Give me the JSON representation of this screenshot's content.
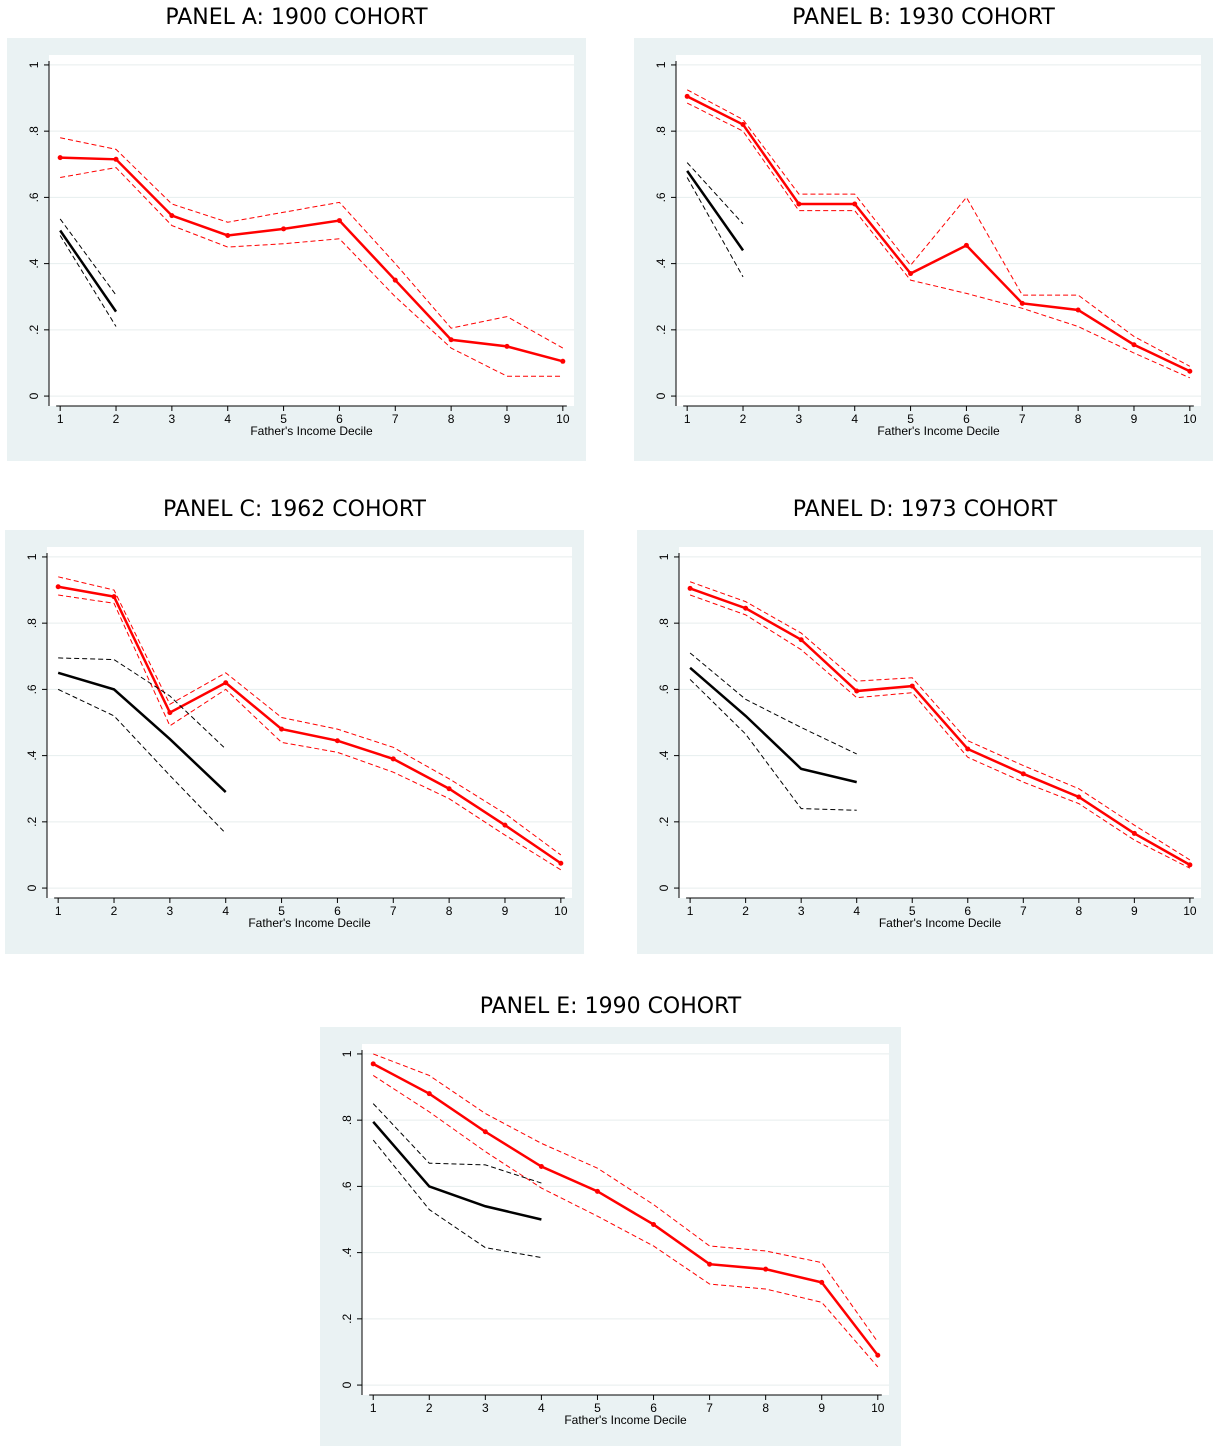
{
  "chart_data": [
    {
      "type": "line",
      "title": "PANEL A: 1900 COHORT",
      "xlabel": "Father's Income Decile",
      "x": [
        1,
        2,
        3,
        4,
        5,
        6,
        7,
        8,
        9,
        10
      ],
      "xlim": [
        0.8,
        10.2
      ],
      "xticks": [
        1,
        2,
        3,
        4,
        5,
        6,
        7,
        8,
        9,
        10
      ],
      "ylim": [
        -0.03,
        1.03
      ],
      "yticks": [
        0,
        {
          "value": 0.2,
          "label": ".2"
        },
        {
          "value": 0.4,
          "label": ".4"
        },
        {
          "value": 0.6,
          "label": ".6"
        },
        {
          "value": 0.8,
          "label": ".8"
        },
        1
      ],
      "grid": true,
      "series": [
        {
          "color": "#ff0000",
          "style": "solid",
          "markers": true,
          "values": [
            0.72,
            0.715,
            0.545,
            0.485,
            0.505,
            0.53,
            0.35,
            0.17,
            0.15,
            0.105
          ]
        },
        {
          "color": "#ff0000",
          "style": "dashed",
          "values": [
            0.78,
            0.745,
            0.58,
            0.525,
            0.555,
            0.585,
            0.4,
            0.205,
            0.24,
            0.145
          ]
        },
        {
          "color": "#ff0000",
          "style": "dashed",
          "values": [
            0.66,
            0.69,
            0.515,
            0.45,
            0.46,
            0.475,
            0.3,
            0.145,
            0.06,
            0.06
          ]
        },
        {
          "color": "#000000",
          "style": "solid",
          "values": [
            0.5,
            0.255,
            null,
            null,
            null,
            null,
            null,
            null,
            null,
            null
          ]
        },
        {
          "color": "#000000",
          "style": "dashed",
          "values": [
            0.535,
            0.305,
            null,
            null,
            null,
            null,
            null,
            null,
            null,
            null
          ]
        },
        {
          "color": "#000000",
          "style": "dashed",
          "values": [
            0.485,
            0.21,
            null,
            null,
            null,
            null,
            null,
            null,
            null,
            null
          ]
        }
      ]
    },
    {
      "type": "line",
      "title": "PANEL B: 1930 COHORT",
      "xlabel": "Father's Income Decile",
      "x": [
        1,
        2,
        3,
        4,
        5,
        6,
        7,
        8,
        9,
        10
      ],
      "xlim": [
        0.8,
        10.2
      ],
      "xticks": [
        1,
        2,
        3,
        4,
        5,
        6,
        7,
        8,
        9,
        10
      ],
      "ylim": [
        -0.03,
        1.03
      ],
      "yticks": [
        0,
        {
          "value": 0.2,
          "label": ".2"
        },
        {
          "value": 0.4,
          "label": ".4"
        },
        {
          "value": 0.6,
          "label": ".6"
        },
        {
          "value": 0.8,
          "label": ".8"
        },
        1
      ],
      "grid": true,
      "series": [
        {
          "color": "#ff0000",
          "style": "solid",
          "markers": true,
          "values": [
            0.905,
            0.82,
            0.58,
            0.58,
            0.37,
            0.455,
            0.28,
            0.26,
            0.155,
            0.075
          ]
        },
        {
          "color": "#ff0000",
          "style": "dashed",
          "values": [
            0.925,
            0.835,
            0.61,
            0.61,
            0.395,
            0.6,
            0.305,
            0.305,
            0.18,
            0.09
          ]
        },
        {
          "color": "#ff0000",
          "style": "dashed",
          "values": [
            0.885,
            0.8,
            0.56,
            0.56,
            0.35,
            0.31,
            0.265,
            0.21,
            0.13,
            0.055
          ]
        },
        {
          "color": "#000000",
          "style": "solid",
          "values": [
            0.68,
            0.44,
            null,
            null,
            null,
            null,
            null,
            null,
            null,
            null
          ]
        },
        {
          "color": "#000000",
          "style": "dashed",
          "values": [
            0.705,
            0.52,
            null,
            null,
            null,
            null,
            null,
            null,
            null,
            null
          ]
        },
        {
          "color": "#000000",
          "style": "dashed",
          "values": [
            0.66,
            0.36,
            null,
            null,
            null,
            null,
            null,
            null,
            null,
            null
          ]
        }
      ]
    },
    {
      "type": "line",
      "title": "PANEL C: 1962 COHORT",
      "xlabel": "Father's Income Decile",
      "x": [
        1,
        2,
        3,
        4,
        5,
        6,
        7,
        8,
        9,
        10
      ],
      "xlim": [
        0.8,
        10.2
      ],
      "xticks": [
        1,
        2,
        3,
        4,
        5,
        6,
        7,
        8,
        9,
        10
      ],
      "ylim": [
        -0.03,
        1.03
      ],
      "yticks": [
        0,
        {
          "value": 0.2,
          "label": ".2"
        },
        {
          "value": 0.4,
          "label": ".4"
        },
        {
          "value": 0.6,
          "label": ".6"
        },
        {
          "value": 0.8,
          "label": ".8"
        },
        1
      ],
      "grid": true,
      "series": [
        {
          "color": "#ff0000",
          "style": "solid",
          "markers": true,
          "values": [
            0.91,
            0.88,
            0.53,
            0.62,
            0.48,
            0.445,
            0.39,
            0.3,
            0.19,
            0.075
          ]
        },
        {
          "color": "#ff0000",
          "style": "dashed",
          "values": [
            0.94,
            0.9,
            0.555,
            0.65,
            0.515,
            0.48,
            0.425,
            0.33,
            0.225,
            0.1
          ]
        },
        {
          "color": "#ff0000",
          "style": "dashed",
          "values": [
            0.885,
            0.86,
            0.49,
            0.6,
            0.44,
            0.41,
            0.35,
            0.27,
            0.16,
            0.055
          ]
        },
        {
          "color": "#000000",
          "style": "solid",
          "values": [
            0.65,
            0.6,
            0.45,
            0.29,
            null,
            null,
            null,
            null,
            null,
            null
          ]
        },
        {
          "color": "#000000",
          "style": "dashed",
          "values": [
            0.695,
            0.69,
            0.58,
            0.42,
            null,
            null,
            null,
            null,
            null,
            null
          ]
        },
        {
          "color": "#000000",
          "style": "dashed",
          "values": [
            0.6,
            0.52,
            0.34,
            0.165,
            null,
            null,
            null,
            null,
            null,
            null
          ]
        }
      ]
    },
    {
      "type": "line",
      "title": "PANEL D: 1973 COHORT",
      "xlabel": "Father's Income Decile",
      "x": [
        1,
        2,
        3,
        4,
        5,
        6,
        7,
        8,
        9,
        10
      ],
      "xlim": [
        0.8,
        10.2
      ],
      "xticks": [
        1,
        2,
        3,
        4,
        5,
        6,
        7,
        8,
        9,
        10
      ],
      "ylim": [
        -0.03,
        1.03
      ],
      "yticks": [
        0,
        {
          "value": 0.2,
          "label": ".2"
        },
        {
          "value": 0.4,
          "label": ".4"
        },
        {
          "value": 0.6,
          "label": ".6"
        },
        {
          "value": 0.8,
          "label": ".8"
        },
        1
      ],
      "grid": true,
      "series": [
        {
          "color": "#ff0000",
          "style": "solid",
          "markers": true,
          "values": [
            0.905,
            0.845,
            0.75,
            0.595,
            0.61,
            0.42,
            0.345,
            0.275,
            0.165,
            0.07
          ]
        },
        {
          "color": "#ff0000",
          "style": "dashed",
          "values": [
            0.925,
            0.865,
            0.77,
            0.625,
            0.635,
            0.445,
            0.37,
            0.3,
            0.19,
            0.085
          ]
        },
        {
          "color": "#ff0000",
          "style": "dashed",
          "values": [
            0.885,
            0.825,
            0.72,
            0.575,
            0.59,
            0.395,
            0.32,
            0.255,
            0.145,
            0.06
          ]
        },
        {
          "color": "#000000",
          "style": "solid",
          "values": [
            0.665,
            0.52,
            0.36,
            0.32,
            null,
            null,
            null,
            null,
            null,
            null
          ]
        },
        {
          "color": "#000000",
          "style": "dashed",
          "values": [
            0.71,
            0.57,
            0.485,
            0.405,
            null,
            null,
            null,
            null,
            null,
            null
          ]
        },
        {
          "color": "#000000",
          "style": "dashed",
          "values": [
            0.63,
            0.465,
            0.24,
            0.235,
            null,
            null,
            null,
            null,
            null,
            null
          ]
        }
      ]
    },
    {
      "type": "line",
      "title": "PANEL E: 1990 COHORT",
      "xlabel": "Father's Income Decile",
      "x": [
        1,
        2,
        3,
        4,
        5,
        6,
        7,
        8,
        9,
        10
      ],
      "xlim": [
        0.8,
        10.2
      ],
      "xticks": [
        1,
        2,
        3,
        4,
        5,
        6,
        7,
        8,
        9,
        10
      ],
      "ylim": [
        -0.03,
        1.03
      ],
      "yticks": [
        0,
        {
          "value": 0.2,
          "label": ".2"
        },
        {
          "value": 0.4,
          "label": ".4"
        },
        {
          "value": 0.6,
          "label": ".6"
        },
        {
          "value": 0.8,
          "label": ".8"
        },
        1
      ],
      "grid": true,
      "series": [
        {
          "color": "#ff0000",
          "style": "solid",
          "markers": true,
          "values": [
            0.97,
            0.88,
            0.765,
            0.66,
            0.585,
            0.485,
            0.365,
            0.35,
            0.31,
            0.09
          ]
        },
        {
          "color": "#ff0000",
          "style": "dashed",
          "values": [
            1.0,
            0.935,
            0.82,
            0.73,
            0.655,
            0.545,
            0.42,
            0.405,
            0.37,
            0.13
          ]
        },
        {
          "color": "#ff0000",
          "style": "dashed",
          "values": [
            0.935,
            0.825,
            0.705,
            0.595,
            0.51,
            0.42,
            0.305,
            0.29,
            0.25,
            0.055
          ]
        },
        {
          "color": "#000000",
          "style": "solid",
          "values": [
            0.795,
            0.6,
            0.54,
            0.5,
            null,
            null,
            null,
            null,
            null,
            null
          ]
        },
        {
          "color": "#000000",
          "style": "dashed",
          "values": [
            0.85,
            0.67,
            0.665,
            0.61,
            null,
            null,
            null,
            null,
            null,
            null
          ]
        },
        {
          "color": "#000000",
          "style": "dashed",
          "values": [
            0.74,
            0.53,
            0.415,
            0.385,
            null,
            null,
            null,
            null,
            null,
            null
          ]
        }
      ]
    }
  ]
}
